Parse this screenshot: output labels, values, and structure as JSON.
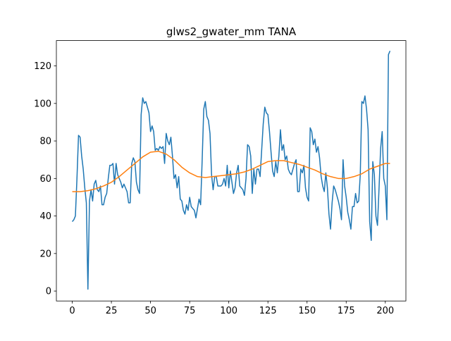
{
  "chart_data": {
    "type": "line",
    "title": "glws2_gwater_mm TANA",
    "xlim": [
      -10.15,
      213.15
    ],
    "xticks": [
      0,
      25,
      50,
      75,
      100,
      125,
      150,
      175,
      200
    ],
    "ylim": [
      -5.3,
      133.5
    ],
    "yticks": [
      0,
      20,
      40,
      60,
      80,
      100,
      120
    ],
    "series": [
      {
        "color": "#1f77b4",
        "x": [
          0,
          1,
          2,
          3,
          4,
          5,
          6,
          7,
          8,
          9,
          10,
          11,
          12,
          13,
          14,
          15,
          16,
          17,
          18,
          19,
          20,
          21,
          22,
          23,
          24,
          25,
          26,
          27,
          28,
          29,
          30,
          31,
          32,
          33,
          34,
          35,
          36,
          37,
          38,
          39,
          40,
          41,
          42,
          43,
          44,
          45,
          46,
          47,
          48,
          49,
          50,
          51,
          52,
          53,
          54,
          55,
          56,
          57,
          58,
          59,
          60,
          61,
          62,
          63,
          64,
          65,
          66,
          67,
          68,
          69,
          70,
          71,
          72,
          73,
          74,
          75,
          76,
          77,
          78,
          79,
          80,
          81,
          82,
          83,
          84,
          85,
          86,
          87,
          88,
          89,
          90,
          91,
          92,
          93,
          94,
          95,
          96,
          97,
          98,
          99,
          100,
          101,
          102,
          103,
          104,
          105,
          106,
          107,
          108,
          109,
          110,
          111,
          112,
          113,
          114,
          115,
          116,
          117,
          118,
          119,
          120,
          121,
          122,
          123,
          124,
          125,
          126,
          127,
          128,
          129,
          130,
          131,
          132,
          133,
          134,
          135,
          136,
          137,
          138,
          139,
          140,
          141,
          142,
          143,
          144,
          145,
          146,
          147,
          148,
          149,
          150,
          151,
          152,
          153,
          154,
          155,
          156,
          157,
          158,
          159,
          160,
          161,
          162,
          163,
          164,
          165,
          166,
          167,
          168,
          169,
          170,
          171,
          172,
          173,
          174,
          175,
          176,
          177,
          178,
          179,
          180,
          181,
          182,
          183,
          184,
          185,
          186,
          187,
          188,
          189,
          190,
          191,
          192,
          193,
          194,
          195,
          196,
          197,
          198,
          199,
          200,
          201,
          202,
          203
        ],
        "values": [
          37,
          38,
          40,
          60,
          83,
          82,
          72,
          65,
          55,
          47,
          1,
          48,
          54,
          48,
          57,
          59,
          54,
          53,
          56,
          46,
          46,
          50,
          52,
          60,
          67,
          67,
          68,
          57,
          68,
          62,
          60,
          58,
          55,
          57,
          55,
          53,
          47,
          47,
          68,
          71,
          69,
          58,
          54,
          52,
          94,
          103,
          100,
          101,
          98,
          95,
          85,
          88,
          85,
          75,
          76,
          75,
          77,
          76,
          77,
          68,
          84,
          80,
          78,
          82,
          72,
          60,
          62,
          55,
          61,
          49,
          48,
          43,
          41,
          46,
          43,
          50,
          45,
          44,
          43,
          39,
          44,
          49,
          46,
          70,
          97,
          101,
          93,
          91,
          84,
          62,
          54,
          61,
          61,
          56,
          56,
          56,
          57,
          60,
          56,
          67,
          55,
          64,
          58,
          52,
          55,
          63,
          67,
          56,
          55,
          54,
          51,
          60,
          78,
          77,
          72,
          52,
          65,
          57,
          65,
          65,
          61,
          75,
          89,
          98,
          95,
          94,
          85,
          74,
          64,
          61,
          69,
          63,
          72,
          86,
          75,
          78,
          70,
          72,
          65,
          63,
          62,
          65,
          68,
          70,
          53,
          53,
          65,
          63,
          67,
          55,
          50,
          48,
          87,
          85,
          78,
          81,
          74,
          77,
          71,
          61,
          56,
          53,
          63,
          55,
          41,
          33,
          47,
          56,
          54,
          51,
          48,
          44,
          38,
          70,
          56,
          50,
          42,
          38,
          33,
          45,
          45,
          52,
          47,
          48,
          62,
          101,
          100,
          104,
          97,
          86,
          37,
          27,
          69,
          62,
          40,
          35,
          55,
          76,
          85,
          60,
          56,
          38,
          126,
          128
        ]
      },
      {
        "color": "#ff7f0e",
        "x": [
          0,
          5,
          10,
          15,
          20,
          25,
          30,
          35,
          40,
          45,
          50,
          55,
          60,
          65,
          70,
          75,
          80,
          85,
          90,
          95,
          100,
          105,
          110,
          115,
          120,
          125,
          130,
          135,
          140,
          145,
          150,
          155,
          160,
          165,
          170,
          175,
          180,
          185,
          190,
          195,
          200,
          203
        ],
        "values": [
          53,
          53,
          53.5,
          54.5,
          56,
          58,
          61,
          64.5,
          68,
          71.5,
          74,
          74.5,
          73,
          70,
          66,
          63,
          61,
          60.5,
          61,
          61.5,
          62,
          62.5,
          63.5,
          65,
          67,
          69,
          69.5,
          69.5,
          68.5,
          67.5,
          66,
          64.5,
          62.5,
          61,
          60,
          60,
          61,
          62.5,
          65,
          66.5,
          68,
          68
        ]
      }
    ]
  }
}
